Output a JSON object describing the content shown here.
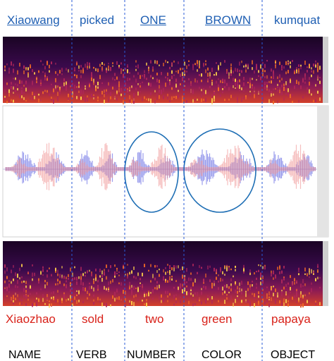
{
  "columns": [
    {
      "top_word": "Xiaowang",
      "bottom_word": "Xiaozhao",
      "category": "NAME",
      "underlined": true
    },
    {
      "top_word": "picked",
      "bottom_word": "sold",
      "category": "VERB",
      "underlined": false
    },
    {
      "top_word": "ONE",
      "bottom_word": "two",
      "category": "NUMBER",
      "underlined": true
    },
    {
      "top_word": "BROWN",
      "bottom_word": "green",
      "category": "COLOR",
      "underlined": true
    },
    {
      "top_word": "kumquat",
      "bottom_word": "papaya",
      "category": "OBJECT",
      "underlined": false
    }
  ],
  "colors": {
    "top_words": "#1f5fb3",
    "bottom_words": "#d9221a",
    "waveform_blue": "#4b4fe0",
    "waveform_red": "#f08a8a",
    "highlight_ellipse": "#1f6fb5"
  }
}
